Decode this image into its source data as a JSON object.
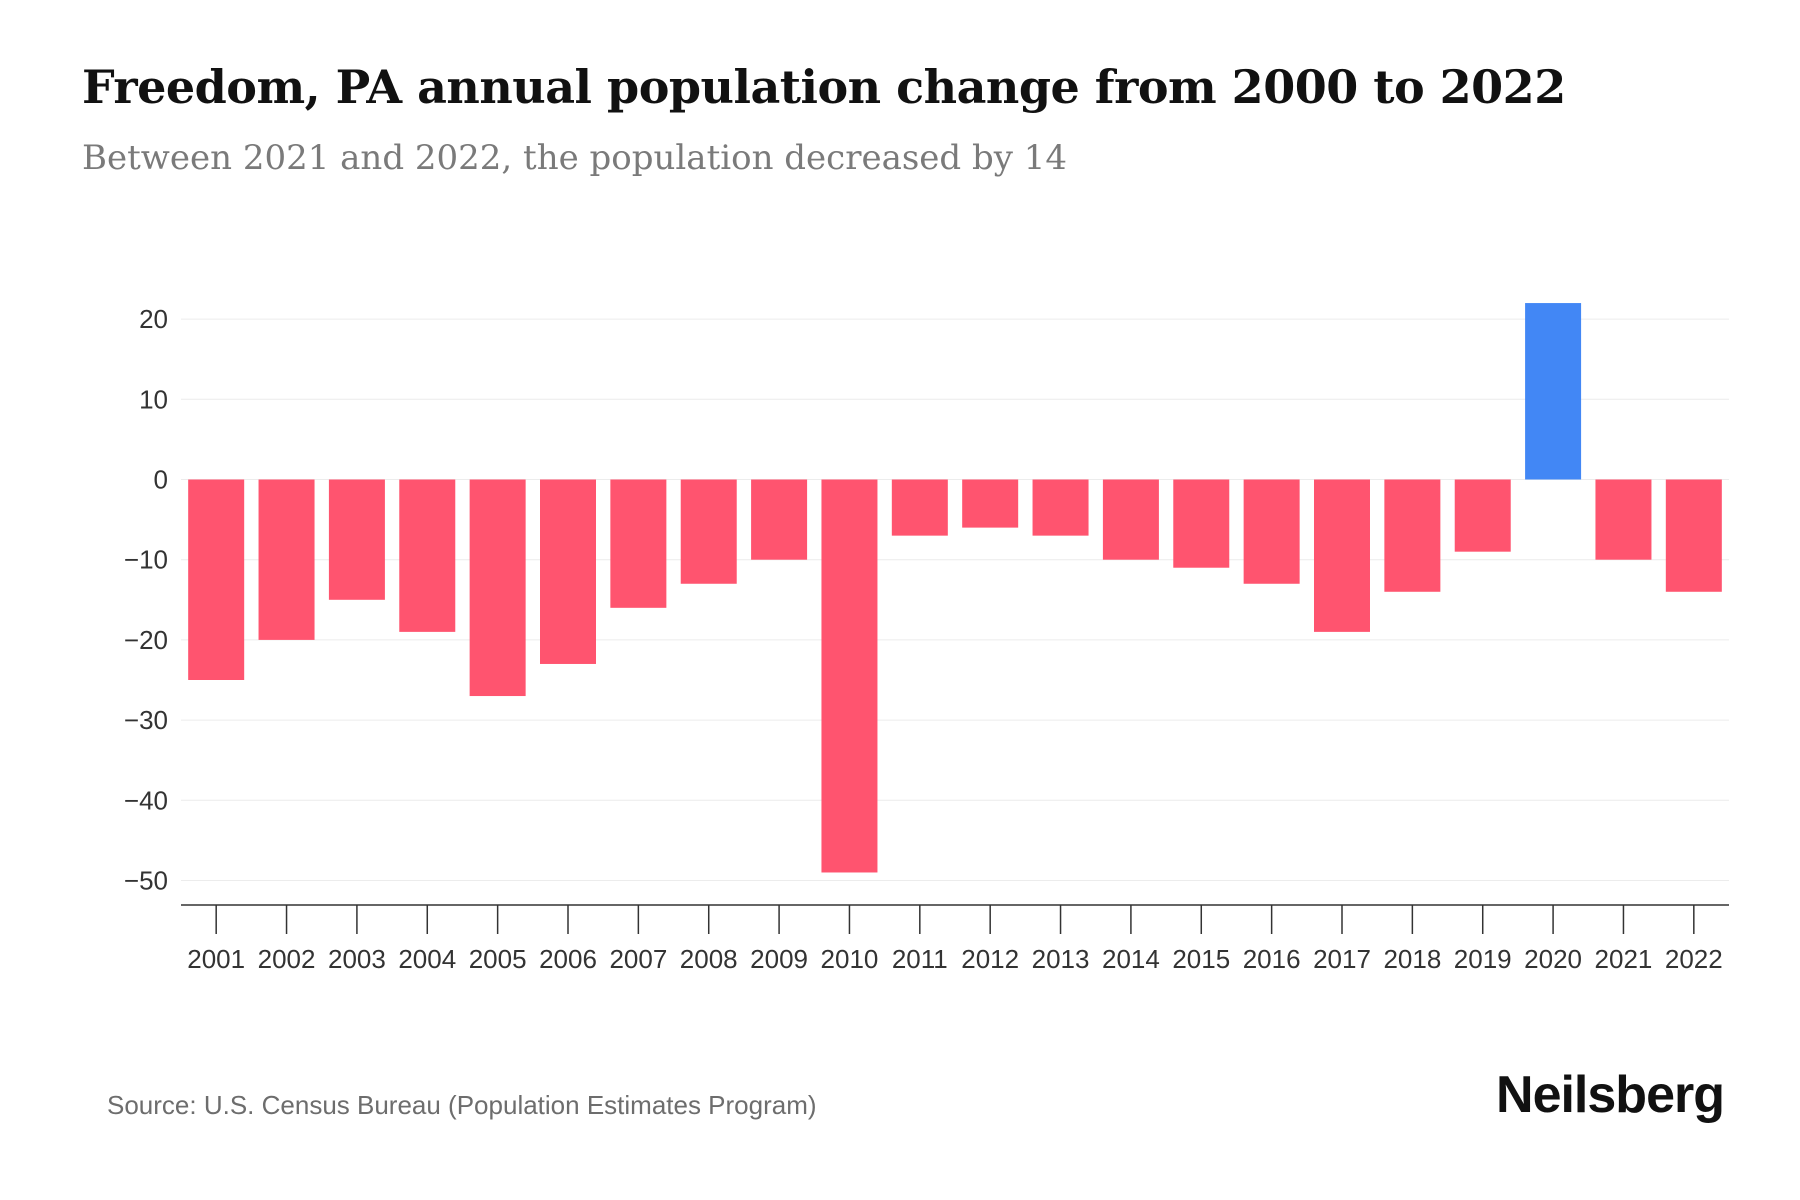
{
  "chart_data": {
    "type": "bar",
    "title": "Freedom, PA annual population change from 2000 to 2022",
    "subtitle": "Between 2021 and 2022, the population decreased by 14",
    "categories": [
      "2001",
      "2002",
      "2003",
      "2004",
      "2005",
      "2006",
      "2007",
      "2008",
      "2009",
      "2010",
      "2011",
      "2012",
      "2013",
      "2014",
      "2015",
      "2016",
      "2017",
      "2018",
      "2019",
      "2020",
      "2021",
      "2022"
    ],
    "values": [
      -25,
      -20,
      -15,
      -19,
      -27,
      -23,
      -16,
      -13,
      -10,
      -49,
      -7,
      -6,
      -7,
      -10,
      -11,
      -13,
      -19,
      -14,
      -9,
      22,
      -10,
      -14
    ],
    "xlabel": "",
    "ylabel": "",
    "ylim": [
      -53,
      23
    ],
    "yticks": [
      20,
      10,
      0,
      -10,
      -20,
      -30,
      -40,
      -50
    ],
    "ytick_labels": [
      "20",
      "10",
      "0",
      "−10",
      "−20",
      "−30",
      "−40",
      "−50"
    ],
    "grid": true,
    "colors": {
      "positive": "#4287f5",
      "negative": "#ff546f",
      "gridline": "#ececec",
      "axis": "#333333",
      "tick_text": "#333333"
    }
  },
  "footer": {
    "source": "Source: U.S. Census Bureau (Population Estimates Program)",
    "brand": "Neilsberg"
  }
}
